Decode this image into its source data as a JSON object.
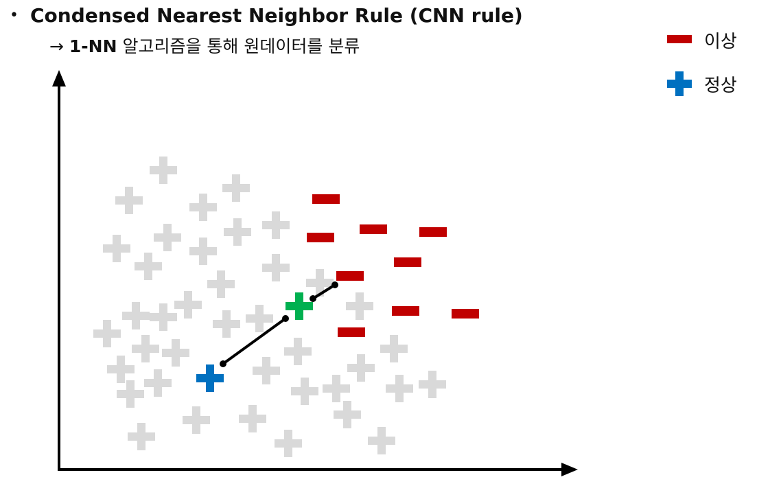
{
  "header": {
    "bullet": "•",
    "title": "Condensed Nearest Neighbor Rule (CNN rule)",
    "sub_arrow": "→",
    "sub_bold": "1-NN",
    "sub_text": " 알고리즘을 통해 원데이터를 분류"
  },
  "legend": {
    "items": [
      {
        "label": "이상",
        "icon": "minus-icon",
        "color": "#c00000"
      },
      {
        "label": "정상",
        "icon": "plus-icon",
        "color": "#0070c0"
      }
    ]
  },
  "colors": {
    "gray_plus": "#d9d9d9",
    "red_minus": "#c00000",
    "blue_plus": "#0070c0",
    "green_plus": "#00b050",
    "axis": "#000000"
  }
}
